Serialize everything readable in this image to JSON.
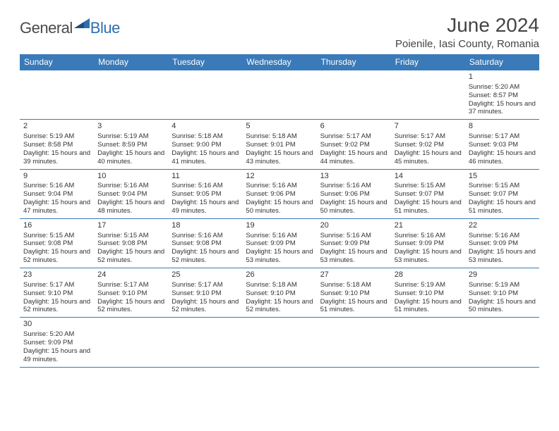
{
  "brand": {
    "part1": "General",
    "part2": "Blue"
  },
  "header": {
    "month_title": "June 2024",
    "location": "Poienile, Iasi County, Romania"
  },
  "styles": {
    "header_bg": "#3a7ab8",
    "header_fg": "#ffffff",
    "cell_border": "#3a7ab8",
    "brand_gray": "#4a4a4a",
    "brand_blue": "#2f6fb0",
    "page_bg": "#ffffff"
  },
  "weekdays": [
    "Sunday",
    "Monday",
    "Tuesday",
    "Wednesday",
    "Thursday",
    "Friday",
    "Saturday"
  ],
  "days": {
    "1": {
      "sunrise": "5:20 AM",
      "sunset": "8:57 PM",
      "daylight": "15 hours and 37 minutes."
    },
    "2": {
      "sunrise": "5:19 AM",
      "sunset": "8:58 PM",
      "daylight": "15 hours and 39 minutes."
    },
    "3": {
      "sunrise": "5:19 AM",
      "sunset": "8:59 PM",
      "daylight": "15 hours and 40 minutes."
    },
    "4": {
      "sunrise": "5:18 AM",
      "sunset": "9:00 PM",
      "daylight": "15 hours and 41 minutes."
    },
    "5": {
      "sunrise": "5:18 AM",
      "sunset": "9:01 PM",
      "daylight": "15 hours and 43 minutes."
    },
    "6": {
      "sunrise": "5:17 AM",
      "sunset": "9:02 PM",
      "daylight": "15 hours and 44 minutes."
    },
    "7": {
      "sunrise": "5:17 AM",
      "sunset": "9:02 PM",
      "daylight": "15 hours and 45 minutes."
    },
    "8": {
      "sunrise": "5:17 AM",
      "sunset": "9:03 PM",
      "daylight": "15 hours and 46 minutes."
    },
    "9": {
      "sunrise": "5:16 AM",
      "sunset": "9:04 PM",
      "daylight": "15 hours and 47 minutes."
    },
    "10": {
      "sunrise": "5:16 AM",
      "sunset": "9:04 PM",
      "daylight": "15 hours and 48 minutes."
    },
    "11": {
      "sunrise": "5:16 AM",
      "sunset": "9:05 PM",
      "daylight": "15 hours and 49 minutes."
    },
    "12": {
      "sunrise": "5:16 AM",
      "sunset": "9:06 PM",
      "daylight": "15 hours and 50 minutes."
    },
    "13": {
      "sunrise": "5:16 AM",
      "sunset": "9:06 PM",
      "daylight": "15 hours and 50 minutes."
    },
    "14": {
      "sunrise": "5:15 AM",
      "sunset": "9:07 PM",
      "daylight": "15 hours and 51 minutes."
    },
    "15": {
      "sunrise": "5:15 AM",
      "sunset": "9:07 PM",
      "daylight": "15 hours and 51 minutes."
    },
    "16": {
      "sunrise": "5:15 AM",
      "sunset": "9:08 PM",
      "daylight": "15 hours and 52 minutes."
    },
    "17": {
      "sunrise": "5:15 AM",
      "sunset": "9:08 PM",
      "daylight": "15 hours and 52 minutes."
    },
    "18": {
      "sunrise": "5:16 AM",
      "sunset": "9:08 PM",
      "daylight": "15 hours and 52 minutes."
    },
    "19": {
      "sunrise": "5:16 AM",
      "sunset": "9:09 PM",
      "daylight": "15 hours and 53 minutes."
    },
    "20": {
      "sunrise": "5:16 AM",
      "sunset": "9:09 PM",
      "daylight": "15 hours and 53 minutes."
    },
    "21": {
      "sunrise": "5:16 AM",
      "sunset": "9:09 PM",
      "daylight": "15 hours and 53 minutes."
    },
    "22": {
      "sunrise": "5:16 AM",
      "sunset": "9:09 PM",
      "daylight": "15 hours and 53 minutes."
    },
    "23": {
      "sunrise": "5:17 AM",
      "sunset": "9:10 PM",
      "daylight": "15 hours and 52 minutes."
    },
    "24": {
      "sunrise": "5:17 AM",
      "sunset": "9:10 PM",
      "daylight": "15 hours and 52 minutes."
    },
    "25": {
      "sunrise": "5:17 AM",
      "sunset": "9:10 PM",
      "daylight": "15 hours and 52 minutes."
    },
    "26": {
      "sunrise": "5:18 AM",
      "sunset": "9:10 PM",
      "daylight": "15 hours and 52 minutes."
    },
    "27": {
      "sunrise": "5:18 AM",
      "sunset": "9:10 PM",
      "daylight": "15 hours and 51 minutes."
    },
    "28": {
      "sunrise": "5:19 AM",
      "sunset": "9:10 PM",
      "daylight": "15 hours and 51 minutes."
    },
    "29": {
      "sunrise": "5:19 AM",
      "sunset": "9:10 PM",
      "daylight": "15 hours and 50 minutes."
    },
    "30": {
      "sunrise": "5:20 AM",
      "sunset": "9:09 PM",
      "daylight": "15 hours and 49 minutes."
    }
  },
  "grid": [
    [
      null,
      null,
      null,
      null,
      null,
      null,
      "1"
    ],
    [
      "2",
      "3",
      "4",
      "5",
      "6",
      "7",
      "8"
    ],
    [
      "9",
      "10",
      "11",
      "12",
      "13",
      "14",
      "15"
    ],
    [
      "16",
      "17",
      "18",
      "19",
      "20",
      "21",
      "22"
    ],
    [
      "23",
      "24",
      "25",
      "26",
      "27",
      "28",
      "29"
    ],
    [
      "30",
      null,
      null,
      null,
      null,
      null,
      null
    ]
  ],
  "labels": {
    "sunrise_prefix": "Sunrise: ",
    "sunset_prefix": "Sunset: ",
    "daylight_prefix": "Daylight: "
  }
}
